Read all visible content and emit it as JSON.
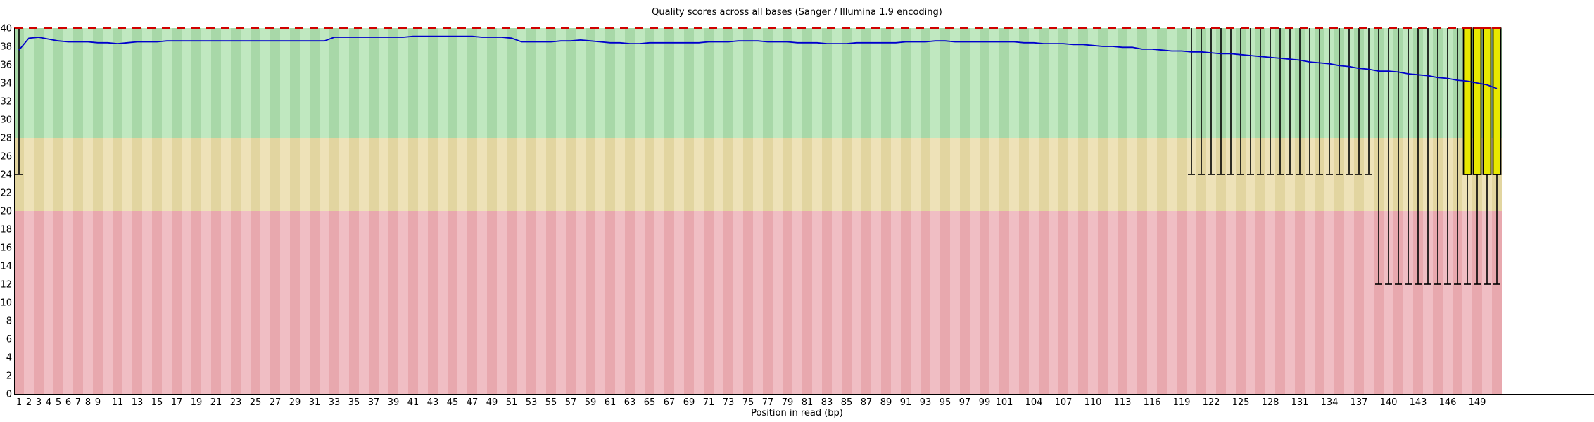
{
  "chart_data": {
    "type": "line",
    "subtype": "fastqc-per-base-quality-boxplot",
    "title": "Quality scores across all bases (Sanger / Illumina 1.9 encoding)",
    "xlabel": "Position in read (bp)",
    "ylabel": "",
    "ylim": [
      0,
      40
    ],
    "y_tick_step": 2,
    "n_positions": 151,
    "y_ticks": [
      0,
      2,
      4,
      6,
      8,
      10,
      12,
      14,
      16,
      18,
      20,
      22,
      24,
      26,
      28,
      30,
      32,
      34,
      36,
      38,
      40
    ],
    "x_ticks": [
      1,
      2,
      3,
      4,
      5,
      6,
      7,
      8,
      9,
      11,
      13,
      15,
      17,
      19,
      21,
      23,
      25,
      27,
      29,
      31,
      33,
      35,
      37,
      39,
      41,
      43,
      45,
      47,
      49,
      51,
      53,
      55,
      57,
      59,
      61,
      63,
      65,
      67,
      69,
      71,
      73,
      75,
      77,
      79,
      81,
      83,
      85,
      87,
      89,
      91,
      93,
      95,
      97,
      99,
      101,
      104,
      107,
      110,
      113,
      116,
      119,
      122,
      125,
      128,
      131,
      134,
      137,
      140,
      143,
      146,
      149
    ],
    "bands": [
      {
        "low": 28,
        "high": 40,
        "quality": "good",
        "dark": "#a8d8a8",
        "light": "#c0e8c0"
      },
      {
        "low": 20,
        "high": 28,
        "quality": "reasonable",
        "dark": "#e2d5a0",
        "light": "#eee2b8"
      },
      {
        "low": 0,
        "high": 20,
        "quality": "poor",
        "dark": "#e8a8ae",
        "light": "#f0bec4"
      }
    ],
    "max_quality_line": {
      "y": 40,
      "color": "#d00000",
      "dash": [
        12,
        9
      ]
    },
    "mean_line_color": "#0000cc",
    "box_fill": "#e8e800",
    "box_stroke": "#000000",
    "whisker_color": "#000000",
    "axis_color": "#000000",
    "whisker_groups": [
      {
        "from": 1,
        "to": 1,
        "low": 24,
        "high": 40
      },
      {
        "from": 120,
        "to": 138,
        "low": 24,
        "high": 40
      },
      {
        "from": 139,
        "to": 147,
        "low": 12,
        "high": 40
      }
    ],
    "box_groups": [
      {
        "from": 148,
        "to": 151,
        "box_low": 24,
        "box_high": 40,
        "median": 40,
        "whisker_low": 12,
        "whisker_high": 40
      }
    ],
    "mean": [
      37.6,
      38.9,
      39.0,
      38.8,
      38.6,
      38.5,
      38.5,
      38.5,
      38.4,
      38.4,
      38.3,
      38.4,
      38.5,
      38.5,
      38.5,
      38.6,
      38.6,
      38.6,
      38.6,
      38.6,
      38.6,
      38.6,
      38.6,
      38.6,
      38.6,
      38.6,
      38.6,
      38.6,
      38.6,
      38.6,
      38.6,
      38.6,
      39.0,
      39.0,
      39.0,
      39.0,
      39.0,
      39.0,
      39.0,
      39.0,
      39.1,
      39.1,
      39.1,
      39.1,
      39.1,
      39.1,
      39.1,
      39.0,
      39.0,
      39.0,
      38.9,
      38.5,
      38.5,
      38.5,
      38.5,
      38.6,
      38.6,
      38.7,
      38.6,
      38.5,
      38.4,
      38.4,
      38.3,
      38.3,
      38.4,
      38.4,
      38.4,
      38.4,
      38.4,
      38.4,
      38.5,
      38.5,
      38.5,
      38.6,
      38.6,
      38.6,
      38.5,
      38.5,
      38.5,
      38.4,
      38.4,
      38.4,
      38.3,
      38.3,
      38.3,
      38.4,
      38.4,
      38.4,
      38.4,
      38.4,
      38.5,
      38.5,
      38.5,
      38.6,
      38.6,
      38.5,
      38.5,
      38.5,
      38.5,
      38.5,
      38.5,
      38.5,
      38.4,
      38.4,
      38.3,
      38.3,
      38.3,
      38.2,
      38.2,
      38.1,
      38.0,
      38.0,
      37.9,
      37.9,
      37.7,
      37.7,
      37.6,
      37.5,
      37.5,
      37.4,
      37.4,
      37.3,
      37.2,
      37.2,
      37.1,
      37.0,
      36.9,
      36.8,
      36.7,
      36.6,
      36.5,
      36.3,
      36.2,
      36.1,
      35.9,
      35.8,
      35.6,
      35.5,
      35.3,
      35.3,
      35.2,
      35.0,
      34.9,
      34.8,
      34.6,
      34.5,
      34.3,
      34.2,
      34.0,
      33.8,
      33.4
    ]
  }
}
